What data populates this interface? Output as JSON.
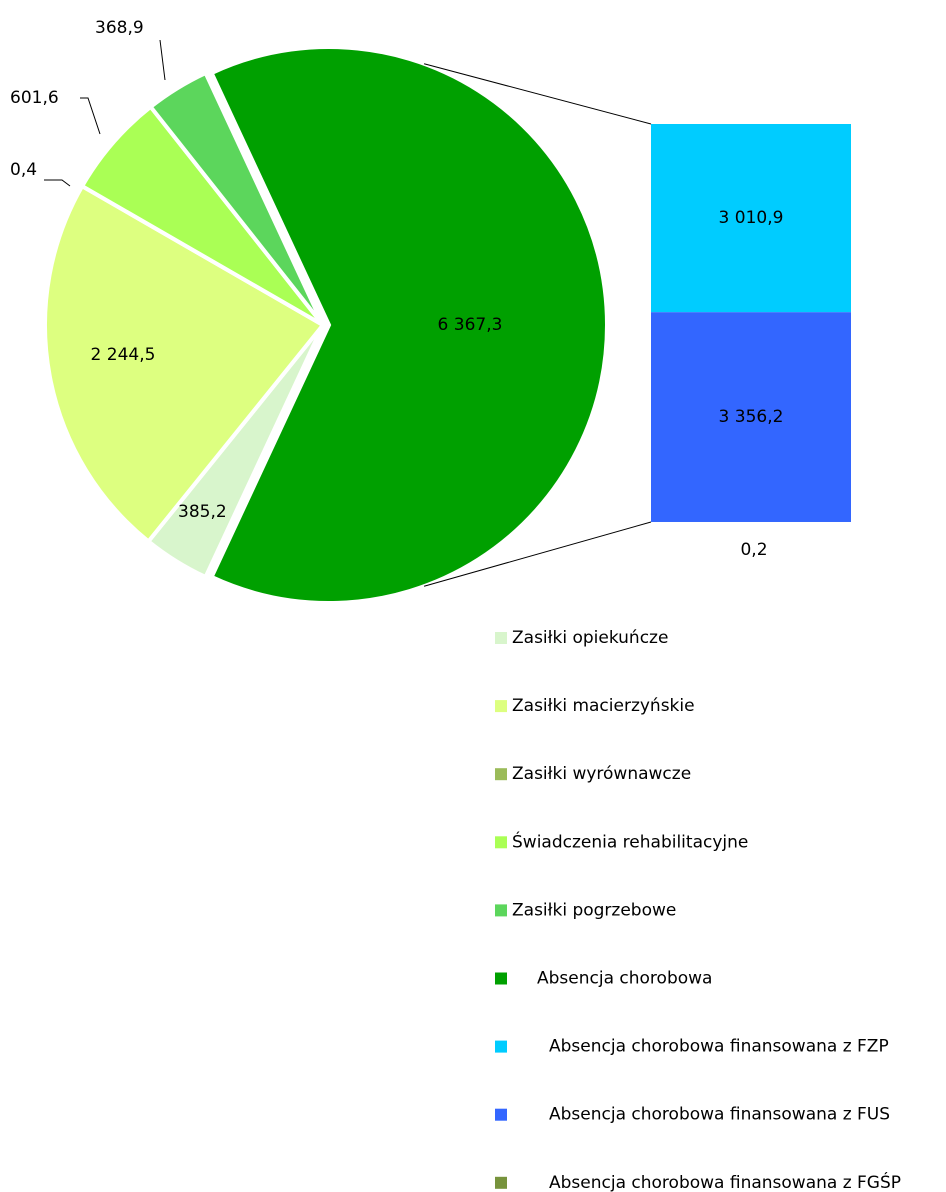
{
  "chart_data": {
    "type": "pie",
    "categories": [
      "Zasiłki opiekuńcze",
      "Zasiłki macierzyńskie",
      "Zasiłki wyrównawcze",
      "Świadczenia rehabilitacyjne",
      "Zasiłki pogrzebowe",
      "Absencja chorobowa"
    ],
    "values": [
      385.2,
      2244.5,
      0.4,
      601.6,
      368.9,
      6367.3
    ],
    "value_labels": [
      "385,2",
      "2 244,5",
      "0,4",
      "601,6",
      "368,9",
      "6 367,3"
    ],
    "colors": [
      "#d8f5cc",
      "#ddff80",
      "#9bbb59",
      "#aaff55",
      "#5cd65c",
      "#00a000"
    ],
    "bar": {
      "categories": [
        "Absencja chorobowa finansowana z FZP",
        "Absencja chorobowa finansowana z FUS",
        "Absencja chorobowa finansowana z FGŚP"
      ],
      "values": [
        3010.9,
        3356.2,
        0.2
      ],
      "value_labels": [
        "3 010,9",
        "3 356,2",
        "0,2"
      ],
      "colors": [
        "#00ccff",
        "#3366ff",
        "#77933c"
      ]
    }
  }
}
